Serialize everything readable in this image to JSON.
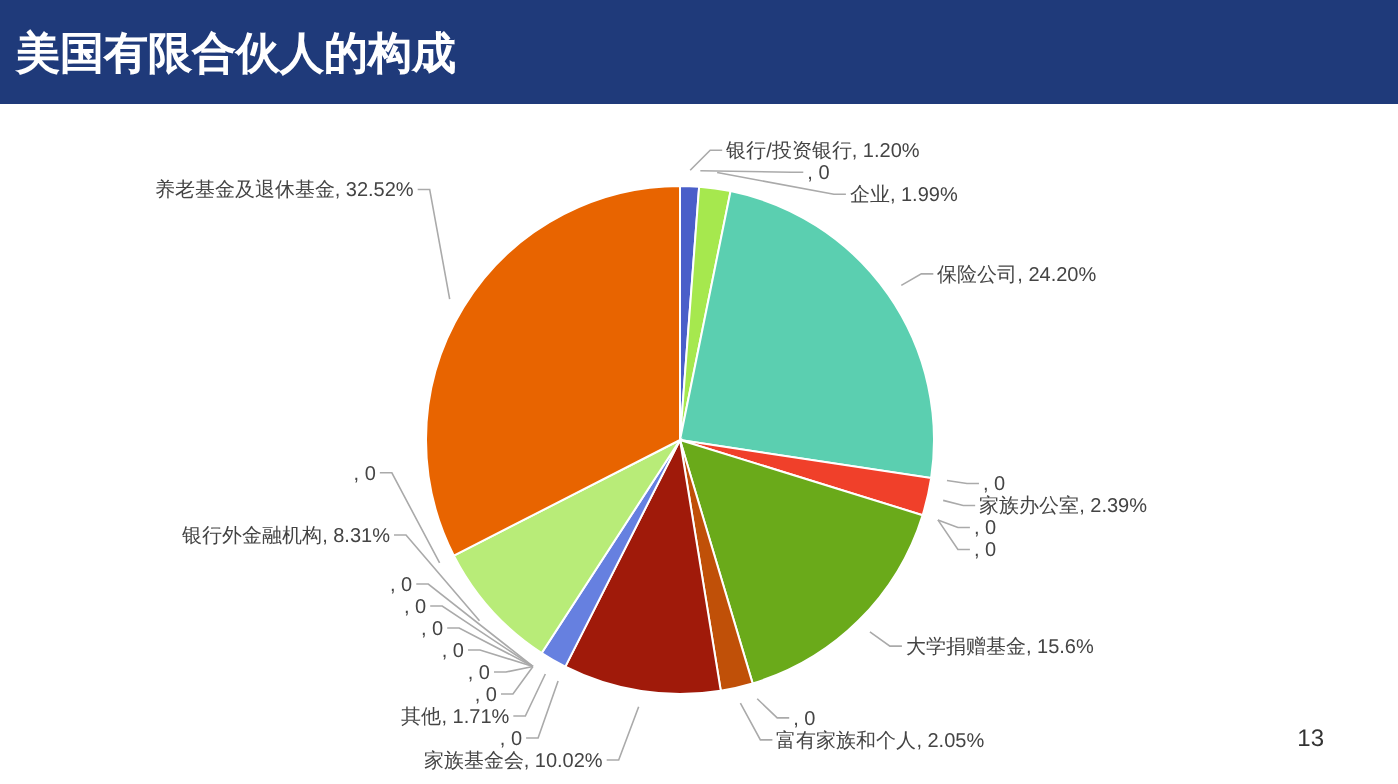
{
  "chart_data": {
    "type": "pie",
    "title": "美国有限合伙人的构成",
    "categories": [
      "银行/投资银行",
      null,
      "企业",
      "保险公司",
      null,
      "家族办公室",
      null,
      null,
      "大学捐赠基金",
      null,
      "富有家族和个人",
      "家族基金会",
      null,
      "其他",
      null,
      null,
      null,
      null,
      null,
      null,
      "银行外金融机构",
      null,
      "养老基金及退休基金"
    ],
    "values": [
      1.2,
      0,
      1.99,
      24.2,
      0,
      2.39,
      0,
      0,
      15.6,
      0,
      2.05,
      10.02,
      0,
      1.71,
      0,
      0,
      0,
      0,
      0,
      0,
      8.31,
      0,
      32.52
    ],
    "value_labels": [
      "1.20%",
      ", 0",
      "1.99%",
      "24.20%",
      ", 0",
      "2.39%",
      ", 0",
      ", 0",
      "15.6%",
      ", 0",
      "2.05%",
      "10.02%",
      ", 0",
      "1.71%",
      ", 0",
      ", 0",
      ", 0",
      ", 0",
      ", 0",
      ", 0",
      "8.31%",
      ", 0",
      "32.52%"
    ],
    "colors": [
      "#4a5fc9",
      null,
      "#a6e84e",
      "#5bcfb0",
      null,
      "#f0402a",
      null,
      null,
      "#6aaa1a",
      null,
      "#c05008",
      "#a01a0a",
      null,
      "#6680e0",
      null,
      null,
      null,
      null,
      null,
      null,
      "#b8ec78",
      null,
      "#e86400"
    ],
    "annotations": [
      "13"
    ]
  }
}
